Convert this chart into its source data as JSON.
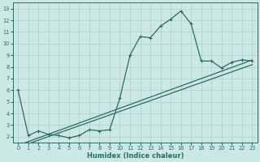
{
  "xlabel": "Humidex (Indice chaleur)",
  "background_color": "#cce8e4",
  "grid_color": "#b0d4d0",
  "line_color": "#2a6b65",
  "xlim": [
    -0.5,
    23.5
  ],
  "ylim": [
    1.5,
    13.5
  ],
  "yticks": [
    2,
    3,
    4,
    5,
    6,
    7,
    8,
    9,
    10,
    11,
    12,
    13
  ],
  "xticks": [
    0,
    1,
    2,
    3,
    4,
    5,
    6,
    7,
    8,
    9,
    10,
    11,
    12,
    13,
    14,
    15,
    16,
    17,
    18,
    19,
    20,
    21,
    22,
    23
  ],
  "main_x": [
    0,
    1,
    2,
    3,
    4,
    5,
    6,
    7,
    8,
    9,
    10,
    11,
    12,
    13,
    14,
    15,
    16,
    17,
    18,
    19,
    20,
    21,
    22,
    23
  ],
  "main_y": [
    6.0,
    2.1,
    2.5,
    2.2,
    2.1,
    1.9,
    2.1,
    2.6,
    2.5,
    2.6,
    5.3,
    9.0,
    10.6,
    10.5,
    11.5,
    12.1,
    12.8,
    11.7,
    8.5,
    8.5,
    7.9,
    8.4,
    8.6,
    8.5
  ],
  "trend1_x": [
    0,
    1,
    2,
    3,
    4,
    5,
    6,
    7,
    8,
    9,
    10,
    11,
    12,
    13,
    14,
    15,
    16,
    17,
    18,
    19,
    20,
    21,
    22,
    23
  ],
  "trend1_y": [
    2.3,
    2.3,
    2.5,
    2.7,
    2.7,
    2.7,
    2.8,
    2.9,
    3.0,
    3.1,
    3.5,
    4.0,
    4.5,
    5.0,
    5.6,
    6.2,
    6.8,
    7.2,
    7.5,
    7.7,
    8.0,
    8.2,
    8.4,
    8.6
  ],
  "trend2_x": [
    0,
    1,
    2,
    3,
    4,
    5,
    6,
    7,
    8,
    9,
    10,
    11,
    12,
    13,
    14,
    15,
    16,
    17,
    18,
    19,
    20,
    21,
    22,
    23
  ],
  "trend2_y": [
    2.1,
    2.1,
    2.3,
    2.5,
    2.5,
    2.5,
    2.6,
    2.7,
    2.8,
    2.9,
    3.3,
    3.7,
    4.2,
    4.7,
    5.2,
    5.8,
    6.3,
    6.7,
    7.1,
    7.3,
    7.7,
    7.9,
    8.1,
    8.3
  ]
}
